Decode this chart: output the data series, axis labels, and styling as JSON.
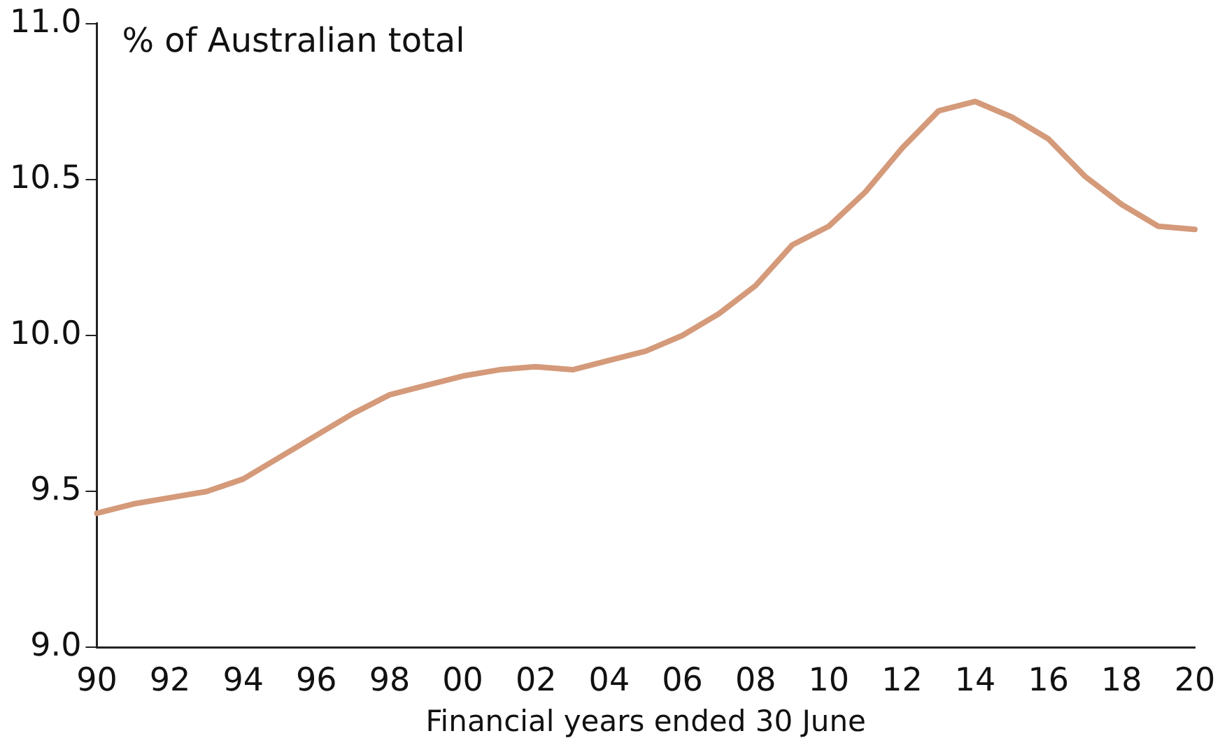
{
  "chart_data": {
    "type": "line",
    "xlabel": "Financial years ended 30 June",
    "annotations": [
      "% of Australian total"
    ],
    "categories": [
      "90",
      null,
      "92",
      null,
      "94",
      null,
      "96",
      null,
      "98",
      null,
      "00",
      null,
      "02",
      null,
      "04",
      null,
      "06",
      null,
      "08",
      null,
      "10",
      null,
      "12",
      null,
      "14",
      null,
      "16",
      null,
      "18",
      null,
      "20"
    ],
    "series": [
      {
        "color": "#d49a7a",
        "values": [
          9.43,
          9.46,
          9.48,
          9.5,
          9.54,
          9.61,
          9.68,
          9.75,
          9.81,
          9.84,
          9.87,
          9.89,
          9.9,
          9.89,
          9.92,
          9.95,
          10.0,
          10.07,
          10.16,
          10.29,
          10.35,
          10.46,
          10.6,
          10.72,
          10.75,
          10.7,
          10.63,
          10.51,
          10.42,
          10.35,
          10.34
        ]
      }
    ],
    "ylim": [
      9.0,
      11.0
    ],
    "yticks": [
      {
        "value": 9.0,
        "label": "9.0"
      },
      {
        "value": 9.5,
        "label": "9.5"
      },
      {
        "value": 10.0,
        "label": "10.0"
      },
      {
        "value": 10.5,
        "label": "10.5"
      },
      {
        "value": 11.0,
        "label": "11.0"
      }
    ],
    "grid": false,
    "legend": false,
    "marker": "none",
    "line_style": "solid"
  }
}
